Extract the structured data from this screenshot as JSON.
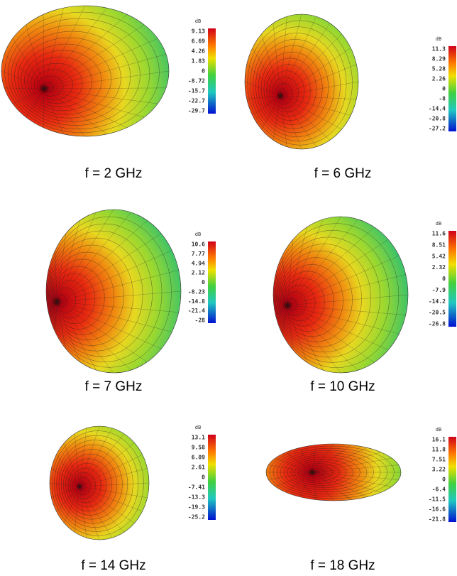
{
  "panels": [
    {
      "caption": "f = 2 GHz",
      "unit": "dB",
      "scale": [
        "9.13",
        "6.69",
        "4.26",
        "1.83",
        "0",
        "-8.72",
        "-15.7",
        "-22.7",
        "-29.7"
      ]
    },
    {
      "caption": "f = 6 GHz",
      "unit": "dB",
      "scale": [
        "11.3",
        "8.29",
        "5.28",
        "2.26",
        "0",
        "-8",
        "-14.4",
        "-20.8",
        "-27.2"
      ]
    },
    {
      "caption": "f = 7 GHz",
      "unit": "dB",
      "scale": [
        "10.6",
        "7.77",
        "4.94",
        "2.12",
        "0",
        "-8.23",
        "-14.8",
        "-21.4",
        "-28"
      ]
    },
    {
      "caption": "f = 10 GHz",
      "unit": "dB",
      "scale": [
        "11.6",
        "8.51",
        "5.42",
        "2.32",
        "0",
        "-7.9",
        "-14.2",
        "-20.5",
        "-26.8"
      ]
    },
    {
      "caption": "f = 14 GHz",
      "unit": "dB",
      "scale": [
        "13.1",
        "9.58",
        "6.09",
        "2.61",
        "0",
        "-7.41",
        "-13.3",
        "-19.3",
        "-25.2"
      ]
    },
    {
      "caption": "f = 18 GHz",
      "unit": "dB",
      "scale": [
        "16.1",
        "11.8",
        "7.51",
        "3.22",
        "0",
        "-6.4",
        "-11.5",
        "-16.6",
        "-21.8"
      ]
    }
  ]
}
